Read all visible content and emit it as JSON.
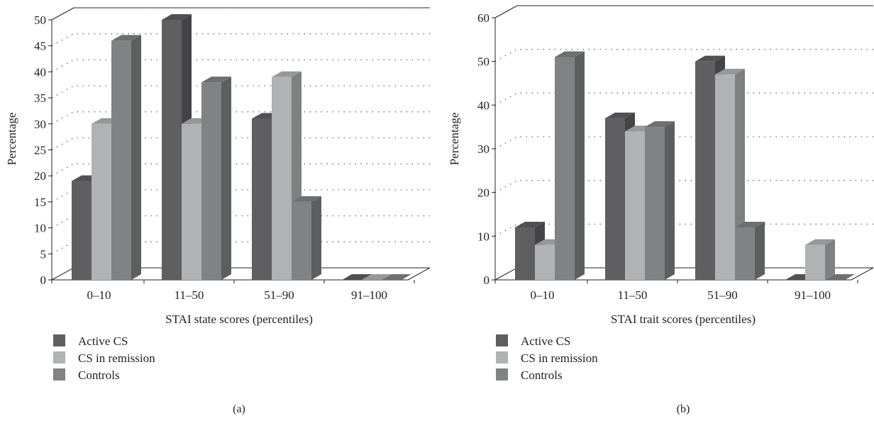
{
  "colors": {
    "active": "#5f5f61",
    "remission": "#b1b2b4",
    "controls": "#818284",
    "axis": "#231f20"
  },
  "chart_data": [
    {
      "type": "bar",
      "panel_label": "(a)",
      "xlabel": "STAI state scores (percentiles)",
      "ylabel": "Percentage",
      "categories": [
        "0–10",
        "11–50",
        "51–90",
        "91–100"
      ],
      "ylim": [
        0,
        50
      ],
      "yticks": [
        0,
        5,
        10,
        15,
        20,
        25,
        30,
        35,
        40,
        45,
        50
      ],
      "grid": true,
      "series": [
        {
          "name": "Active CS",
          "color_key": "active",
          "values": [
            19,
            50,
            31,
            0
          ]
        },
        {
          "name": "CS in remission",
          "color_key": "remission",
          "values": [
            30,
            30,
            39,
            0
          ]
        },
        {
          "name": "Controls",
          "color_key": "controls",
          "values": [
            46,
            38,
            15,
            0
          ]
        }
      ]
    },
    {
      "type": "bar",
      "panel_label": "(b)",
      "xlabel": "STAI trait scores (percentiles)",
      "ylabel": "Percentage",
      "categories": [
        "0–10",
        "11–50",
        "51–90",
        "91–100"
      ],
      "ylim": [
        0,
        60
      ],
      "yticks": [
        0,
        10,
        20,
        30,
        40,
        50,
        60
      ],
      "grid": true,
      "series": [
        {
          "name": "Active CS",
          "color_key": "active",
          "values": [
            12,
            37,
            50,
            0
          ]
        },
        {
          "name": "CS in remission",
          "color_key": "remission",
          "values": [
            8,
            34,
            47,
            8
          ]
        },
        {
          "name": "Controls",
          "color_key": "controls",
          "values": [
            51,
            35,
            12,
            0
          ]
        }
      ]
    }
  ]
}
